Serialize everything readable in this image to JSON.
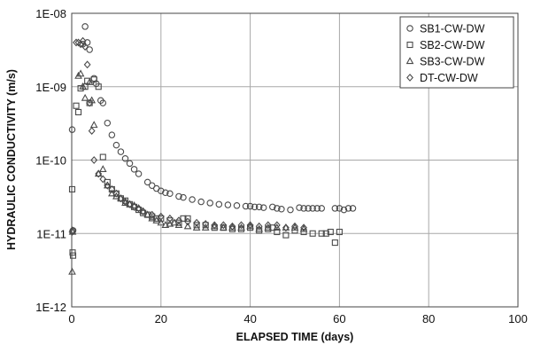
{
  "chart_data": {
    "type": "scatter",
    "xlabel": "ELAPSED TIME (days)",
    "ylabel": "HYDRAULIC CONDUCTIVITY (m/s)",
    "xlim": [
      0,
      100
    ],
    "ylim": [
      1e-12,
      1e-08
    ],
    "yscale": "log",
    "x_ticks": [
      0,
      20,
      40,
      60,
      80,
      100
    ],
    "x_tick_labels": [
      "0",
      "20",
      "40",
      "60",
      "80",
      "100"
    ],
    "y_ticks": [
      1e-12,
      1e-11,
      1e-10,
      1e-09,
      1e-08
    ],
    "y_tick_labels": [
      "1E-12",
      "1E-11",
      "1E-10",
      "1E-09",
      "1E-08"
    ],
    "grid": true,
    "legend_position": "top-right",
    "series": [
      {
        "name": "SB1-CW-DW",
        "marker": "circle",
        "points": [
          [
            0.1,
            2.6e-10
          ],
          [
            0.3,
            1.1e-11
          ],
          [
            2.5,
            3.8e-09
          ],
          [
            3.0,
            6.6e-09
          ],
          [
            3.5,
            4e-09
          ],
          [
            4.0,
            3.2e-09
          ],
          [
            5.0,
            1.3e-09
          ],
          [
            5.5,
            1.1e-09
          ],
          [
            6.5,
            6.5e-10
          ],
          [
            7.0,
            6e-10
          ],
          [
            8.0,
            3.2e-10
          ],
          [
            9.0,
            2.2e-10
          ],
          [
            10.0,
            1.6e-10
          ],
          [
            11.0,
            1.3e-10
          ],
          [
            12.0,
            1.05e-10
          ],
          [
            13.0,
            9e-11
          ],
          [
            14.0,
            7.5e-11
          ],
          [
            15.0,
            6.5e-11
          ],
          [
            17.0,
            5e-11
          ],
          [
            18.0,
            4.5e-11
          ],
          [
            19.0,
            4.1e-11
          ],
          [
            20.0,
            3.8e-11
          ],
          [
            21.0,
            3.6e-11
          ],
          [
            22.0,
            3.5e-11
          ],
          [
            24.0,
            3.2e-11
          ],
          [
            25.0,
            3.1e-11
          ],
          [
            27.0,
            2.9e-11
          ],
          [
            29.0,
            2.7e-11
          ],
          [
            31.0,
            2.6e-11
          ],
          [
            33.0,
            2.5e-11
          ],
          [
            35.0,
            2.45e-11
          ],
          [
            37.0,
            2.4e-11
          ],
          [
            39.0,
            2.35e-11
          ],
          [
            40.0,
            2.35e-11
          ],
          [
            41.0,
            2.3e-11
          ],
          [
            42.0,
            2.3e-11
          ],
          [
            43.0,
            2.25e-11
          ],
          [
            45.0,
            2.3e-11
          ],
          [
            46.0,
            2.2e-11
          ],
          [
            47.0,
            2.15e-11
          ],
          [
            49.0,
            2.1e-11
          ],
          [
            51.0,
            2.25e-11
          ],
          [
            52.0,
            2.2e-11
          ],
          [
            53.0,
            2.2e-11
          ],
          [
            54.0,
            2.2e-11
          ],
          [
            55.0,
            2.2e-11
          ],
          [
            56.0,
            2.2e-11
          ],
          [
            59.0,
            2.2e-11
          ],
          [
            60.0,
            2.2e-11
          ],
          [
            61.0,
            2.1e-11
          ],
          [
            62.0,
            2.2e-11
          ],
          [
            63.0,
            2.2e-11
          ]
        ]
      },
      {
        "name": "SB2-CW-DW",
        "marker": "square",
        "points": [
          [
            0.1,
            4e-11
          ],
          [
            0.2,
            5.5e-12
          ],
          [
            0.3,
            5e-12
          ],
          [
            1.0,
            5.5e-10
          ],
          [
            1.5,
            4.5e-10
          ],
          [
            2.0,
            9.5e-10
          ],
          [
            3.0,
            1e-09
          ],
          [
            3.5,
            1.2e-09
          ],
          [
            4.0,
            6e-10
          ],
          [
            5.0,
            1.25e-09
          ],
          [
            6.0,
            1e-09
          ],
          [
            7.0,
            1.1e-10
          ],
          [
            8.0,
            5e-11
          ],
          [
            9.0,
            4e-11
          ],
          [
            10.0,
            3.5e-11
          ],
          [
            11.0,
            3e-11
          ],
          [
            12.0,
            2.8e-11
          ],
          [
            13.0,
            2.5e-11
          ],
          [
            14.0,
            2.3e-11
          ],
          [
            15.0,
            2.1e-11
          ],
          [
            16.0,
            1.9e-11
          ],
          [
            17.0,
            1.8e-11
          ],
          [
            18.0,
            1.7e-11
          ],
          [
            19.0,
            1.6e-11
          ],
          [
            20.0,
            1.6e-11
          ],
          [
            22.0,
            1.5e-11
          ],
          [
            24.0,
            1.4e-11
          ],
          [
            25.0,
            1.6e-11
          ],
          [
            26.0,
            1.6e-11
          ],
          [
            28.0,
            1.3e-11
          ],
          [
            30.0,
            1.3e-11
          ],
          [
            32.0,
            1.2e-11
          ],
          [
            34.0,
            1.2e-11
          ],
          [
            36.0,
            1.15e-11
          ],
          [
            38.0,
            1.15e-11
          ],
          [
            40.0,
            1.2e-11
          ],
          [
            42.0,
            1.1e-11
          ],
          [
            44.0,
            1.15e-11
          ],
          [
            45.0,
            1.2e-11
          ],
          [
            46.0,
            1.05e-11
          ],
          [
            48.0,
            9.5e-12
          ],
          [
            50.0,
            1.1e-11
          ],
          [
            52.0,
            1.05e-11
          ],
          [
            54.0,
            1e-11
          ],
          [
            56.0,
            1e-11
          ],
          [
            57.0,
            1e-11
          ],
          [
            58.0,
            1.05e-11
          ],
          [
            59.0,
            7.5e-12
          ],
          [
            60.0,
            1.05e-11
          ]
        ]
      },
      {
        "name": "SB3-CW-DW",
        "marker": "triangle",
        "points": [
          [
            0.1,
            3e-12
          ],
          [
            0.2,
            1.05e-11
          ],
          [
            1.5,
            1.4e-09
          ],
          [
            2.0,
            1.5e-09
          ],
          [
            2.5,
            1e-09
          ],
          [
            3.0,
            7e-10
          ],
          [
            4.0,
            1.15e-09
          ],
          [
            4.5,
            6.5e-10
          ],
          [
            5.0,
            3e-10
          ],
          [
            6.0,
            6.5e-11
          ],
          [
            7.0,
            7.5e-11
          ],
          [
            8.0,
            4.5e-11
          ],
          [
            9.0,
            3.5e-11
          ],
          [
            10.0,
            3.2e-11
          ],
          [
            11.0,
            3e-11
          ],
          [
            12.0,
            2.6e-11
          ],
          [
            13.0,
            2.5e-11
          ],
          [
            14.0,
            2.4e-11
          ],
          [
            15.0,
            2.2e-11
          ],
          [
            16.0,
            2e-11
          ],
          [
            17.0,
            1.8e-11
          ],
          [
            18.0,
            1.6e-11
          ],
          [
            19.0,
            1.5e-11
          ],
          [
            20.0,
            1.4e-11
          ],
          [
            21.0,
            1.3e-11
          ],
          [
            22.0,
            1.35e-11
          ],
          [
            23.0,
            1.4e-11
          ],
          [
            24.0,
            1.3e-11
          ],
          [
            26.0,
            1.25e-11
          ],
          [
            28.0,
            1.2e-11
          ],
          [
            30.0,
            1.2e-11
          ],
          [
            32.0,
            1.25e-11
          ],
          [
            34.0,
            1.2e-11
          ],
          [
            36.0,
            1.2e-11
          ],
          [
            38.0,
            1.2e-11
          ],
          [
            40.0,
            1.25e-11
          ],
          [
            42.0,
            1.15e-11
          ],
          [
            44.0,
            1.2e-11
          ],
          [
            46.0,
            1.2e-11
          ],
          [
            48.0,
            1.2e-11
          ],
          [
            50.0,
            1.2e-11
          ],
          [
            52.0,
            1.15e-11
          ]
        ]
      },
      {
        "name": "DT-CW-DW",
        "marker": "diamond",
        "points": [
          [
            0.1,
            1.05e-11
          ],
          [
            0.2,
            1.1e-11
          ],
          [
            1.0,
            4e-09
          ],
          [
            1.5,
            4e-09
          ],
          [
            2.0,
            3.8e-09
          ],
          [
            2.5,
            4.2e-09
          ],
          [
            3.0,
            3.5e-09
          ],
          [
            3.5,
            2e-09
          ],
          [
            4.0,
            6e-10
          ],
          [
            4.5,
            2.5e-10
          ],
          [
            5.0,
            1e-10
          ],
          [
            6.0,
            6.5e-11
          ],
          [
            7.0,
            5.5e-11
          ],
          [
            8.0,
            4.5e-11
          ],
          [
            9.0,
            4e-11
          ],
          [
            10.0,
            3.5e-11
          ],
          [
            11.0,
            3e-11
          ],
          [
            12.0,
            2.7e-11
          ],
          [
            13.0,
            2.5e-11
          ],
          [
            14.0,
            2.3e-11
          ],
          [
            15.0,
            2.2e-11
          ],
          [
            16.0,
            2e-11
          ],
          [
            18.0,
            1.8e-11
          ],
          [
            20.0,
            1.7e-11
          ],
          [
            22.0,
            1.6e-11
          ],
          [
            24.0,
            1.5e-11
          ],
          [
            26.0,
            1.45e-11
          ],
          [
            28.0,
            1.4e-11
          ],
          [
            30.0,
            1.35e-11
          ],
          [
            32.0,
            1.3e-11
          ],
          [
            34.0,
            1.3e-11
          ],
          [
            36.0,
            1.25e-11
          ],
          [
            38.0,
            1.3e-11
          ],
          [
            40.0,
            1.3e-11
          ],
          [
            42.0,
            1.25e-11
          ],
          [
            44.0,
            1.3e-11
          ],
          [
            46.0,
            1.3e-11
          ],
          [
            48.0,
            1.2e-11
          ],
          [
            50.0,
            1.25e-11
          ],
          [
            52.0,
            1.2e-11
          ]
        ]
      }
    ]
  }
}
